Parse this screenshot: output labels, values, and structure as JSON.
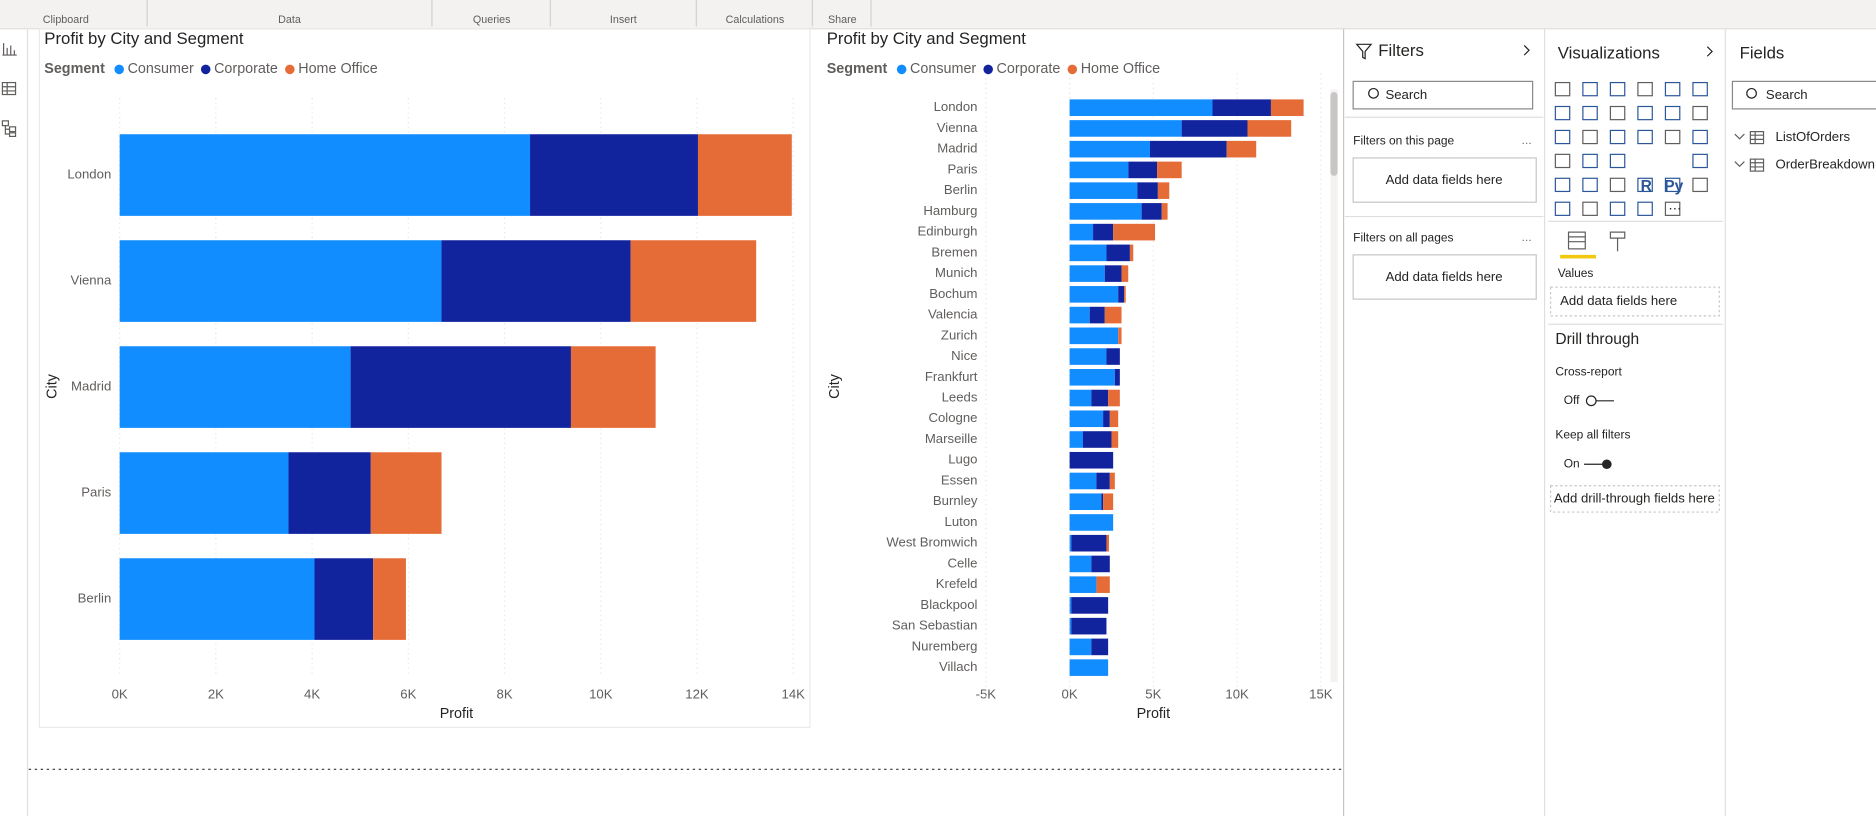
{
  "ribbon": {
    "groups": [
      "Clipboard",
      "Data",
      "Queries",
      "Insert",
      "Calculations",
      "Share"
    ]
  },
  "chart_data": [
    {
      "type": "bar",
      "orientation": "horizontal",
      "stacked": true,
      "title": "Profit by City and Segment",
      "legend_title": "Segment",
      "x_label": "Profit",
      "y_label": "City",
      "categories": [
        "London",
        "Vienna",
        "Madrid",
        "Paris",
        "Berlin"
      ],
      "series": [
        {
          "name": "Consumer",
          "color": "#118dff",
          "values": [
            8530,
            6690,
            4800,
            3510,
            4050
          ]
        },
        {
          "name": "Corporate",
          "color": "#12239e",
          "values": [
            3490,
            3930,
            4580,
            1710,
            1220
          ]
        },
        {
          "name": "Home Office",
          "color": "#e66c37",
          "values": [
            1950,
            2610,
            1760,
            1470,
            680
          ]
        }
      ],
      "xlim": [
        0,
        14000
      ],
      "xticks": [
        {
          "value": 0,
          "label": "0K"
        },
        {
          "value": 2000,
          "label": "2K"
        },
        {
          "value": 4000,
          "label": "4K"
        },
        {
          "value": 6000,
          "label": "6K"
        },
        {
          "value": 8000,
          "label": "8K"
        },
        {
          "value": 10000,
          "label": "10K"
        },
        {
          "value": 12000,
          "label": "12K"
        },
        {
          "value": 14000,
          "label": "14K"
        }
      ],
      "grid": true
    },
    {
      "type": "bar",
      "orientation": "horizontal",
      "stacked": true,
      "title": "Profit by City and Segment",
      "legend_title": "Segment",
      "x_label": "Profit",
      "y_label": "City",
      "categories": [
        "London",
        "Vienna",
        "Madrid",
        "Paris",
        "Berlin",
        "Hamburg",
        "Edinburgh",
        "Bremen",
        "Munich",
        "Bochum",
        "Valencia",
        "Zurich",
        "Nice",
        "Frankfurt",
        "Leeds",
        "Cologne",
        "Marseille",
        "Lugo",
        "Essen",
        "Burnley",
        "Luton",
        "West Bromwich",
        "Celle",
        "Krefeld",
        "Blackpool",
        "San Sebastian",
        "Nuremberg",
        "Villach"
      ],
      "series": [
        {
          "name": "Consumer",
          "color": "#118dff",
          "values": [
            8530,
            6690,
            4800,
            3510,
            4050,
            4300,
            1400,
            2200,
            2100,
            2900,
            1200,
            2900,
            2200,
            2700,
            1300,
            2000,
            800,
            0,
            1600,
            1900,
            2600,
            100,
            1300,
            1600,
            100,
            100,
            1300,
            2300
          ]
        },
        {
          "name": "Corporate",
          "color": "#12239e",
          "values": [
            3490,
            3930,
            4580,
            1710,
            1220,
            1200,
            1200,
            1400,
            1000,
            350,
            900,
            0,
            800,
            300,
            1000,
            400,
            1700,
            2600,
            800,
            100,
            0,
            2100,
            1100,
            0,
            2200,
            2100,
            1000,
            0
          ]
        },
        {
          "name": "Home Office",
          "color": "#e66c37",
          "values": [
            1950,
            2610,
            1760,
            1470,
            680,
            350,
            2500,
            200,
            400,
            100,
            1000,
            200,
            0,
            0,
            700,
            500,
            400,
            0,
            300,
            600,
            0,
            150,
            0,
            800,
            0,
            0,
            0,
            0
          ]
        }
      ],
      "xlim": [
        -5000,
        15000
      ],
      "xticks": [
        {
          "value": -5000,
          "label": "-5K"
        },
        {
          "value": 0,
          "label": "0K"
        },
        {
          "value": 5000,
          "label": "5K"
        },
        {
          "value": 10000,
          "label": "10K"
        },
        {
          "value": 15000,
          "label": "15K"
        }
      ],
      "grid": true
    }
  ],
  "filters": {
    "title": "Filters",
    "search": "Search",
    "sections": [
      {
        "title": "Filters on this page",
        "placeholder": "Add data fields here"
      },
      {
        "title": "Filters on all pages",
        "placeholder": "Add data fields here"
      }
    ]
  },
  "visualizations": {
    "title": "Visualizations",
    "icon_labels": [
      "R",
      "Py"
    ],
    "values_label": "Values",
    "values_placeholder": "Add data fields here",
    "drill_through": {
      "title": "Drill through",
      "cross_report": "Cross-report",
      "cross_report_state": "Off",
      "keep_filters": "Keep all filters",
      "keep_filters_state": "On",
      "placeholder": "Add drill-through fields here"
    }
  },
  "fields": {
    "title": "Fields",
    "search": "Search",
    "tables": [
      "ListOfOrders",
      "OrderBreakdown"
    ]
  }
}
